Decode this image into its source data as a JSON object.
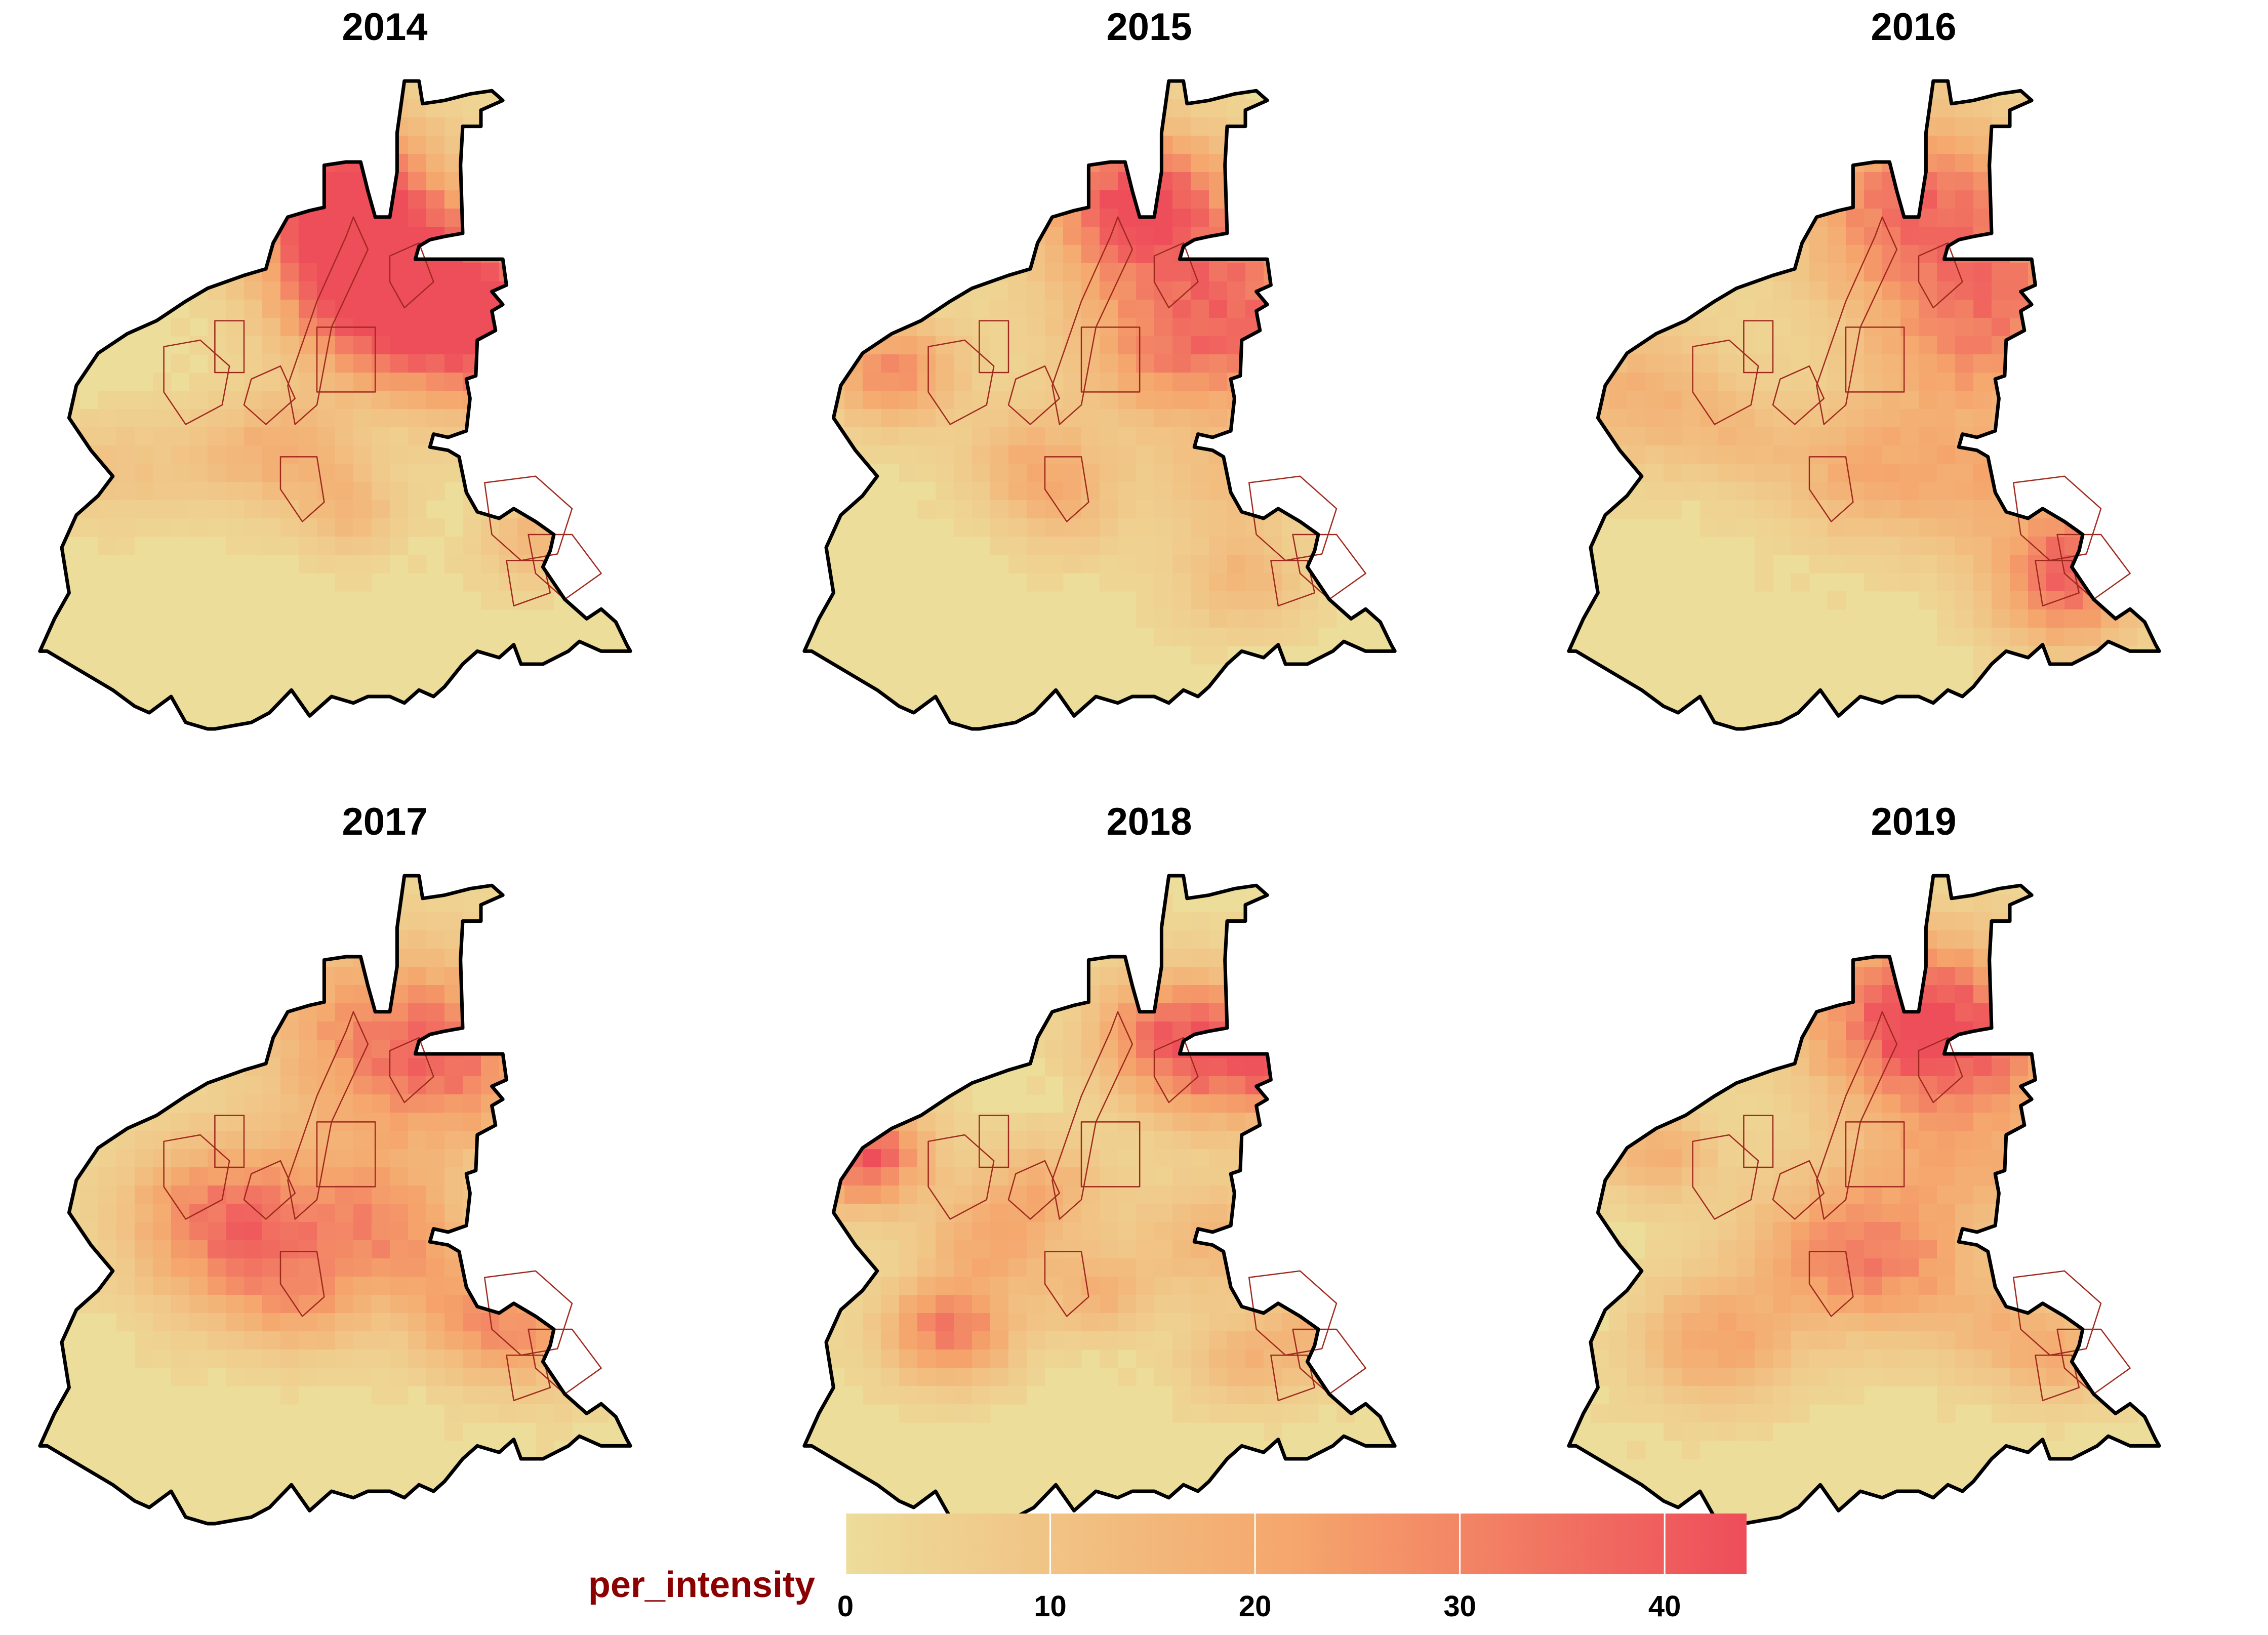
{
  "panels": [
    {
      "year": "2014",
      "hotspots": [
        [
          0.43,
          0.17,
          1.0,
          0.09
        ],
        [
          0.53,
          0.33,
          0.8,
          0.1
        ],
        [
          0.47,
          0.31,
          0.7,
          0.08
        ],
        [
          0.7,
          0.38,
          0.5,
          0.09
        ],
        [
          0.62,
          0.4,
          0.4,
          0.09
        ],
        [
          0.37,
          0.56,
          0.3,
          0.06
        ],
        [
          0.28,
          0.58,
          0.2,
          0.06
        ],
        [
          0.44,
          0.66,
          0.3,
          0.05
        ],
        [
          0.7,
          0.71,
          0.3,
          0.05
        ],
        [
          0.12,
          0.6,
          0.2,
          0.06
        ]
      ]
    },
    {
      "year": "2015",
      "hotspots": [
        [
          0.47,
          0.18,
          0.8,
          0.08
        ],
        [
          0.55,
          0.3,
          0.5,
          0.12
        ],
        [
          0.14,
          0.45,
          0.6,
          0.06
        ],
        [
          0.66,
          0.38,
          0.4,
          0.1
        ],
        [
          0.52,
          0.44,
          0.3,
          0.08
        ],
        [
          0.33,
          0.58,
          0.3,
          0.06
        ],
        [
          0.6,
          0.62,
          0.25,
          0.06
        ],
        [
          0.62,
          0.77,
          0.3,
          0.06
        ],
        [
          0.38,
          0.65,
          0.25,
          0.06
        ]
      ]
    },
    {
      "year": "2016",
      "hotspots": [
        [
          0.5,
          0.2,
          0.75,
          0.11
        ],
        [
          0.65,
          0.34,
          0.45,
          0.1
        ],
        [
          0.55,
          0.42,
          0.35,
          0.09
        ],
        [
          0.12,
          0.48,
          0.35,
          0.08
        ],
        [
          0.7,
          0.78,
          0.7,
          0.07
        ],
        [
          0.42,
          0.6,
          0.35,
          0.08
        ],
        [
          0.58,
          0.62,
          0.35,
          0.08
        ],
        [
          0.74,
          0.7,
          0.35,
          0.06
        ],
        [
          0.25,
          0.55,
          0.2,
          0.06
        ]
      ]
    },
    {
      "year": "2017",
      "hotspots": [
        [
          0.49,
          0.24,
          0.55,
          0.11
        ],
        [
          0.6,
          0.3,
          0.45,
          0.09
        ],
        [
          0.3,
          0.57,
          0.55,
          0.09
        ],
        [
          0.24,
          0.5,
          0.3,
          0.08
        ],
        [
          0.44,
          0.5,
          0.35,
          0.09
        ],
        [
          0.38,
          0.66,
          0.3,
          0.06
        ],
        [
          0.69,
          0.7,
          0.45,
          0.07
        ],
        [
          0.52,
          0.57,
          0.35,
          0.07
        ],
        [
          0.6,
          0.68,
          0.3,
          0.06
        ]
      ]
    },
    {
      "year": "2018",
      "hotspots": [
        [
          0.6,
          0.28,
          0.7,
          0.08
        ],
        [
          0.51,
          0.24,
          0.5,
          0.07
        ],
        [
          0.7,
          0.27,
          0.55,
          0.06
        ],
        [
          0.1,
          0.43,
          0.9,
          0.06
        ],
        [
          0.22,
          0.7,
          0.7,
          0.06
        ],
        [
          0.28,
          0.56,
          0.4,
          0.06
        ],
        [
          0.42,
          0.64,
          0.35,
          0.05
        ],
        [
          0.58,
          0.56,
          0.3,
          0.07
        ],
        [
          0.74,
          0.7,
          0.35,
          0.06
        ],
        [
          0.35,
          0.48,
          0.3,
          0.06
        ],
        [
          0.62,
          0.75,
          0.3,
          0.05
        ]
      ]
    },
    {
      "year": "2019",
      "hotspots": [
        [
          0.49,
          0.22,
          0.9,
          0.1
        ],
        [
          0.6,
          0.28,
          0.4,
          0.08
        ],
        [
          0.14,
          0.43,
          0.4,
          0.05
        ],
        [
          0.22,
          0.72,
          0.45,
          0.07
        ],
        [
          0.38,
          0.58,
          0.45,
          0.09
        ],
        [
          0.48,
          0.6,
          0.35,
          0.08
        ],
        [
          0.52,
          0.44,
          0.3,
          0.08
        ],
        [
          0.66,
          0.45,
          0.25,
          0.06
        ],
        [
          0.62,
          0.7,
          0.3,
          0.06
        ],
        [
          0.7,
          0.75,
          0.3,
          0.05
        ]
      ]
    }
  ],
  "legend": {
    "title": "per_intensity",
    "min": 0,
    "max": 44,
    "ticks": [
      "0",
      "10",
      "20",
      "30",
      "40"
    ],
    "color_low": "#eddc9a",
    "color_mid": "#f5a66c",
    "color_high": "#ee4d5a"
  },
  "colors": {
    "base_fill": "#ecdd9b",
    "city_outline": "#000000",
    "district_outline": "#a0291e"
  }
}
